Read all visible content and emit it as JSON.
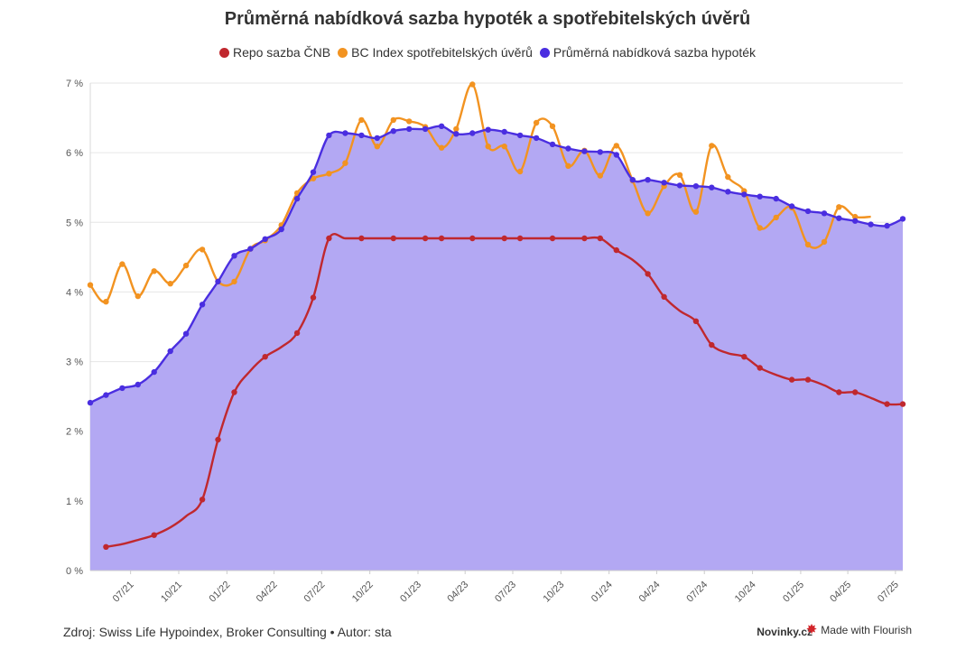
{
  "chart_data": {
    "type": "line",
    "title": "Průměrná nabídková sazba hypoték a spotřebitelských úvěrů",
    "source": "Zdroj: Swiss Life Hypoindex, Broker Consulting • Autor: sta",
    "y_ticks": [
      "0 %",
      "1 %",
      "2 %",
      "3 %",
      "4 %",
      "5 %",
      "6 %",
      "7 %"
    ],
    "ylim": [
      0,
      7
    ],
    "x_range": [
      "2021-04-15",
      "2025-07-15"
    ],
    "x_ticks": [
      {
        "label": "07/21",
        "date": "2021-07-01"
      },
      {
        "label": "10/21",
        "date": "2021-10-01"
      },
      {
        "label": "01/22",
        "date": "2022-01-01"
      },
      {
        "label": "04/22",
        "date": "2022-04-01"
      },
      {
        "label": "07/22",
        "date": "2022-07-01"
      },
      {
        "label": "10/22",
        "date": "2022-10-01"
      },
      {
        "label": "01/23",
        "date": "2023-01-01"
      },
      {
        "label": "04/23",
        "date": "2023-04-01"
      },
      {
        "label": "07/23",
        "date": "2023-07-01"
      },
      {
        "label": "10/23",
        "date": "2023-10-01"
      },
      {
        "label": "01/24",
        "date": "2024-01-01"
      },
      {
        "label": "04/24",
        "date": "2024-04-01"
      },
      {
        "label": "07/24",
        "date": "2024-07-01"
      },
      {
        "label": "10/24",
        "date": "2024-10-01"
      },
      {
        "label": "01/25",
        "date": "2025-01-01"
      },
      {
        "label": "04/25",
        "date": "2025-04-01"
      },
      {
        "label": "07/25",
        "date": "2025-07-01"
      }
    ],
    "series": [
      {
        "name": "Repo sazba ČNB",
        "color": "#c0282e",
        "style": "line",
        "x": [
          "2021-05-15",
          "2021-06-15",
          "2021-07-15",
          "2021-08-15",
          "2021-09-15",
          "2021-10-15",
          "2021-11-15",
          "2021-12-15",
          "2022-01-15",
          "2022-02-15",
          "2022-03-15",
          "2022-04-15",
          "2022-05-15",
          "2022-06-15",
          "2022-07-15",
          "2022-08-15",
          "2022-09-15",
          "2022-10-15",
          "2022-11-15",
          "2022-12-15",
          "2023-01-15",
          "2023-02-15",
          "2023-03-15",
          "2023-04-15",
          "2023-05-15",
          "2023-06-15",
          "2023-07-15",
          "2023-08-15",
          "2023-09-15",
          "2023-10-15",
          "2023-11-15",
          "2023-12-15",
          "2024-01-15",
          "2024-02-15",
          "2024-03-15",
          "2024-04-15",
          "2024-05-15",
          "2024-06-15",
          "2024-07-15",
          "2024-08-15",
          "2024-09-15",
          "2024-10-15",
          "2024-11-15",
          "2024-12-15",
          "2025-01-15",
          "2025-02-15",
          "2025-03-15",
          "2025-04-15",
          "2025-05-15",
          "2025-06-15",
          "2025-07-15"
        ],
        "values": [
          0.34,
          0.38,
          0.44,
          0.51,
          0.62,
          0.78,
          1.02,
          1.88,
          2.56,
          2.87,
          3.07,
          3.21,
          3.41,
          3.92,
          4.77,
          4.77,
          4.77,
          4.77,
          4.77,
          4.77,
          4.77,
          4.77,
          4.77,
          4.77,
          4.77,
          4.77,
          4.77,
          4.77,
          4.77,
          4.77,
          4.77,
          4.77,
          4.6,
          4.46,
          4.26,
          3.93,
          3.73,
          3.58,
          3.24,
          3.12,
          3.07,
          2.91,
          2.81,
          2.74,
          2.74,
          2.66,
          2.56,
          2.56,
          2.48,
          2.39,
          2.39
        ],
        "markers": [
          true,
          false,
          false,
          true,
          false,
          false,
          true,
          true,
          true,
          false,
          true,
          false,
          true,
          true,
          true,
          false,
          true,
          false,
          true,
          false,
          true,
          true,
          false,
          true,
          false,
          true,
          true,
          false,
          true,
          false,
          true,
          true,
          true,
          false,
          true,
          true,
          false,
          true,
          true,
          false,
          true,
          true,
          false,
          true,
          true,
          false,
          true,
          true,
          false,
          true,
          true
        ]
      },
      {
        "name": "BC Index spotřebitelských úvěrů",
        "color": "#f29321",
        "style": "line",
        "x": [
          "2021-04-15",
          "2021-05-15",
          "2021-06-15",
          "2021-07-15",
          "2021-08-15",
          "2021-09-15",
          "2021-10-15",
          "2021-11-15",
          "2021-12-15",
          "2022-01-15",
          "2022-02-15",
          "2022-03-15",
          "2022-04-15",
          "2022-05-15",
          "2022-06-15",
          "2022-07-15",
          "2022-08-15",
          "2022-09-15",
          "2022-10-15",
          "2022-11-15",
          "2022-12-15",
          "2023-01-15",
          "2023-02-15",
          "2023-03-15",
          "2023-04-15",
          "2023-05-15",
          "2023-06-15",
          "2023-07-15",
          "2023-08-15",
          "2023-09-15",
          "2023-10-15",
          "2023-11-15",
          "2023-12-15",
          "2024-01-15",
          "2024-02-15",
          "2024-03-15",
          "2024-04-15",
          "2024-05-15",
          "2024-06-15",
          "2024-07-15",
          "2024-08-15",
          "2024-09-15",
          "2024-10-15",
          "2024-11-15",
          "2024-12-15",
          "2025-01-15",
          "2025-02-15",
          "2025-03-15",
          "2025-04-15",
          "2025-05-15"
        ],
        "values": [
          4.1,
          3.86,
          4.4,
          3.94,
          4.3,
          4.12,
          4.38,
          4.61,
          4.15,
          4.15,
          4.62,
          4.74,
          4.96,
          5.42,
          5.63,
          5.7,
          5.85,
          6.47,
          6.09,
          6.47,
          6.45,
          6.37,
          6.07,
          6.34,
          6.98,
          6.09,
          6.09,
          5.73,
          6.43,
          6.38,
          5.81,
          6.03,
          5.67,
          6.1,
          5.6,
          5.13,
          5.52,
          5.68,
          5.15,
          6.1,
          5.65,
          5.45,
          4.92,
          5.07,
          5.21,
          4.68,
          4.72,
          5.22,
          5.08,
          5.08
        ],
        "markers": [
          true,
          true,
          true,
          true,
          true,
          true,
          true,
          true,
          true,
          true,
          true,
          true,
          true,
          true,
          true,
          true,
          true,
          true,
          true,
          true,
          true,
          true,
          true,
          true,
          true,
          true,
          true,
          true,
          true,
          true,
          true,
          true,
          true,
          true,
          true,
          true,
          true,
          true,
          true,
          true,
          true,
          true,
          true,
          true,
          true,
          true,
          true,
          true,
          true,
          false
        ]
      },
      {
        "name": "Průměrná nabídková sazba hypoték",
        "color": "#4a2ee0",
        "fill": "#b3a8f3",
        "style": "area",
        "x": [
          "2021-04-15",
          "2021-05-15",
          "2021-06-15",
          "2021-07-15",
          "2021-08-15",
          "2021-09-15",
          "2021-10-15",
          "2021-11-15",
          "2021-12-15",
          "2022-01-15",
          "2022-02-15",
          "2022-03-15",
          "2022-04-15",
          "2022-05-15",
          "2022-06-15",
          "2022-07-15",
          "2022-08-15",
          "2022-09-15",
          "2022-10-15",
          "2022-11-15",
          "2022-12-15",
          "2023-01-15",
          "2023-02-15",
          "2023-03-15",
          "2023-04-15",
          "2023-05-15",
          "2023-06-15",
          "2023-07-15",
          "2023-08-15",
          "2023-09-15",
          "2023-10-15",
          "2023-11-15",
          "2023-12-15",
          "2024-01-15",
          "2024-02-15",
          "2024-03-15",
          "2024-04-15",
          "2024-05-15",
          "2024-06-15",
          "2024-07-15",
          "2024-08-15",
          "2024-09-15",
          "2024-10-15",
          "2024-11-15",
          "2024-12-15",
          "2025-01-15",
          "2025-02-15",
          "2025-03-15",
          "2025-04-15",
          "2025-05-15",
          "2025-06-15",
          "2025-07-15"
        ],
        "values": [
          2.41,
          2.52,
          2.62,
          2.67,
          2.85,
          3.15,
          3.4,
          3.82,
          4.15,
          4.52,
          4.62,
          4.76,
          4.9,
          5.34,
          5.72,
          6.25,
          6.28,
          6.25,
          6.21,
          6.31,
          6.34,
          6.34,
          6.38,
          6.27,
          6.28,
          6.33,
          6.3,
          6.25,
          6.21,
          6.12,
          6.06,
          6.02,
          6.01,
          5.97,
          5.61,
          5.61,
          5.57,
          5.53,
          5.52,
          5.5,
          5.44,
          5.4,
          5.37,
          5.34,
          5.23,
          5.16,
          5.13,
          5.06,
          5.02,
          4.97,
          4.95,
          5.05
        ],
        "markers": [
          true,
          true,
          true,
          true,
          true,
          true,
          true,
          true,
          true,
          true,
          true,
          true,
          true,
          true,
          true,
          true,
          true,
          true,
          true,
          true,
          true,
          true,
          true,
          true,
          true,
          true,
          true,
          true,
          true,
          true,
          true,
          true,
          true,
          true,
          true,
          true,
          true,
          true,
          true,
          true,
          true,
          true,
          true,
          true,
          true,
          true,
          true,
          true,
          true,
          true,
          true,
          true
        ]
      }
    ]
  },
  "footer": {
    "source": "Zdroj: Swiss Life Hypoindex, Broker Consulting • Autor: sta",
    "brand": "Novinky.cz",
    "flourish": "Made with Flourish"
  }
}
